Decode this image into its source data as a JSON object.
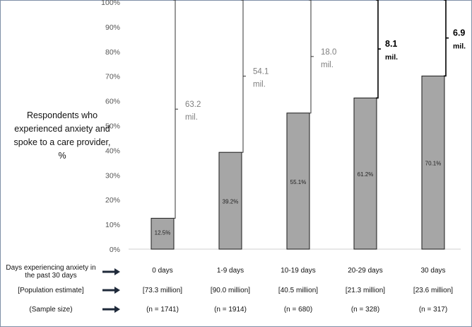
{
  "chart_data": {
    "type": "bar",
    "ylabel": "Respondents who experienced anxiety and spoke to a care provider, %",
    "ylim": [
      0,
      100
    ],
    "y_ticks": [
      "0%",
      "10%",
      "20%",
      "30%",
      "40%",
      "50%",
      "60%",
      "70%",
      "80%",
      "90%",
      "100%"
    ],
    "categories": [
      "0 days",
      "1-9 days",
      "10-19 days",
      "20-29 days",
      "30 days"
    ],
    "values": [
      12.5,
      39.2,
      55.1,
      61.2,
      70.1
    ],
    "value_labels": [
      "12.5%",
      "39.2%",
      "55.1%",
      "61.2%",
      "70.1%"
    ],
    "gap_annotations": [
      {
        "amount": "63.2",
        "unit": "mil.",
        "emphasis": false
      },
      {
        "amount": "54.1",
        "unit": "mil.",
        "emphasis": false
      },
      {
        "amount": "18.0",
        "unit": "mil.",
        "emphasis": false
      },
      {
        "amount": "8.1",
        "unit": "mil.",
        "emphasis": true
      },
      {
        "amount": "6.9",
        "unit": "mil.",
        "emphasis": true
      }
    ],
    "population_estimates": [
      "[73.3 million]",
      "[90.0 million]",
      "[40.5 million]",
      "[21.3 million]",
      "[23.6 million]"
    ],
    "sample_sizes": [
      "(n = 1741)",
      "(n = 1914)",
      "(n = 680)",
      "(n = 328)",
      "(n = 317)"
    ],
    "row_labels": {
      "days": "Days experiencing anxiety in the past 30 days",
      "population": "[Population estimate]",
      "sample": "(Sample size)"
    }
  },
  "colors": {
    "bar_fill": "#a6a6a6",
    "bar_stroke": "#1a1a1a",
    "annotation_gray": "#7f7f7f",
    "annotation_bold": "#000000",
    "arrow": "#1f2a3a"
  },
  "icons": {
    "row_arrow": "right-arrow-icon"
  }
}
